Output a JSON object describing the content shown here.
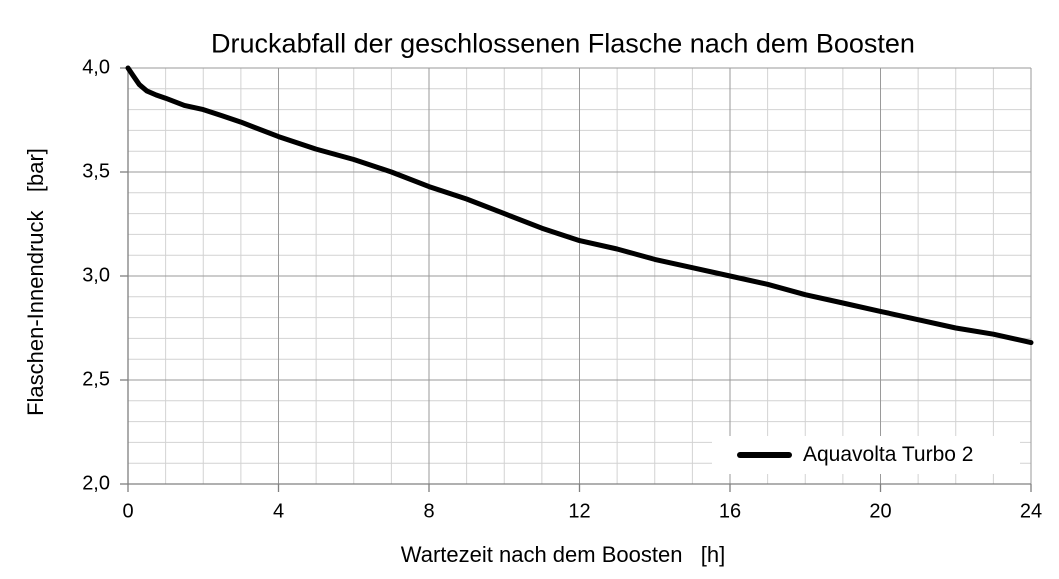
{
  "chart_data": {
    "type": "line",
    "title": "Druckabfall der geschlossenen Flasche nach dem Boosten",
    "xlabel": "Wartezeit nach dem Boosten   [h]",
    "ylabel": "Flaschen-Innendruck   [bar]",
    "xlim": [
      0,
      24
    ],
    "ylim": [
      2.0,
      4.0
    ],
    "x_major_ticks": [
      0,
      4,
      8,
      12,
      16,
      20,
      24
    ],
    "x_tick_labels": [
      "0",
      "4",
      "8",
      "12",
      "16",
      "20",
      "24"
    ],
    "x_minor_step": 1,
    "y_major_ticks": [
      2.0,
      2.5,
      3.0,
      3.5,
      4.0
    ],
    "y_tick_labels": [
      "2,0",
      "2,5",
      "3,0",
      "3,5",
      "4,0"
    ],
    "y_minor_step": 0.1,
    "grid": "major and minor gridlines on",
    "legend_position": "bottom-right",
    "legend": {
      "entries": [
        {
          "label": "Aquavolta Turbo 2",
          "color": "#000000"
        }
      ]
    },
    "series": [
      {
        "name": "Aquavolta Turbo 2",
        "color": "#000000",
        "x": [
          0,
          0.15,
          0.3,
          0.5,
          0.75,
          1,
          1.5,
          2,
          2.5,
          3,
          4,
          5,
          6,
          7,
          8,
          9,
          10,
          11,
          12,
          13,
          14,
          15,
          16,
          17,
          18,
          19,
          20,
          21,
          22,
          23,
          24
        ],
        "y": [
          4.0,
          3.96,
          3.92,
          3.89,
          3.87,
          3.855,
          3.82,
          3.8,
          3.77,
          3.74,
          3.67,
          3.61,
          3.56,
          3.5,
          3.43,
          3.37,
          3.3,
          3.23,
          3.17,
          3.13,
          3.08,
          3.04,
          3.0,
          2.96,
          2.91,
          2.87,
          2.83,
          2.79,
          2.75,
          2.72,
          2.68
        ]
      }
    ]
  },
  "colors": {
    "background": "#ffffff",
    "minor_grid": "#d2d2d2",
    "major_grid": "#9a9a9a",
    "axis": "#808080",
    "series": "#000000",
    "text": "#000000"
  }
}
